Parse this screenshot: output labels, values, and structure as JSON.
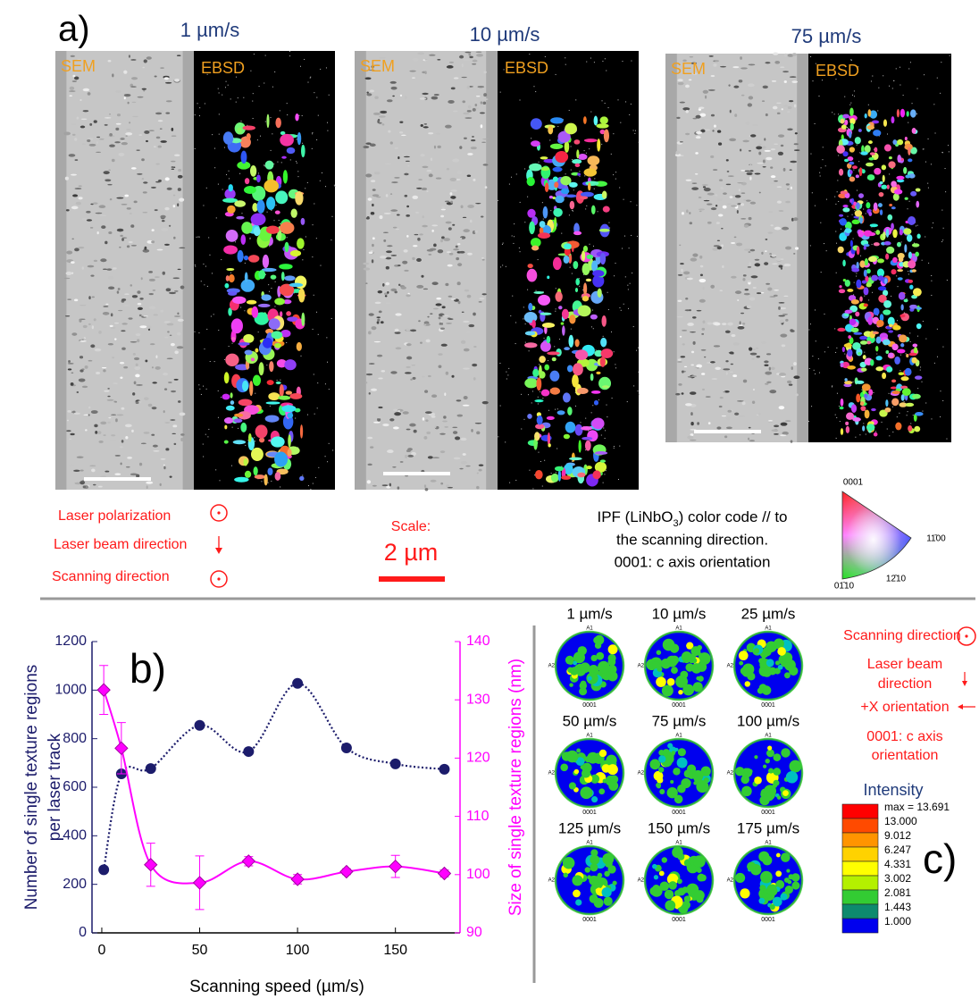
{
  "panel_a": {
    "label": "a)",
    "speeds": [
      "1 µm/s",
      "10 µm/s",
      "75 µm/s"
    ],
    "image_labels": [
      "SEM",
      "EBSD"
    ],
    "legend": [
      "Laser polarization",
      "Laser beam direction",
      "Scanning direction"
    ],
    "scale": {
      "title": "Scale:",
      "value": "2 µm"
    },
    "ipf": {
      "line1": [
        "IPF (LiNbO",
        "3",
        ") color code // to"
      ],
      "line2": "the scanning direction.",
      "line3": "0001: c axis orientation"
    },
    "ipf_triangle": {
      "top": "0001",
      "right": "11̄00",
      "bottom_left": "01̄10",
      "bottom_right": "12̄10"
    }
  },
  "chart_data": {
    "type": "scatter",
    "label": "b)",
    "xlabel": "Scanning speed (µm/s)",
    "ylabel": [
      "Number of single texture regions",
      "per laser track"
    ],
    "y2label": "Size of single texture regions (nm)",
    "x": [
      1,
      10,
      25,
      50,
      75,
      100,
      125,
      150,
      175
    ],
    "series": [
      {
        "color": "#1c1c6b",
        "marker": "circle",
        "line": "dotted",
        "values": [
          260,
          655,
          677,
          855,
          747,
          1028,
          762,
          696,
          674
        ]
      },
      {
        "color": "#ff00ff",
        "marker": "diamond",
        "line": "solid",
        "axis": "y2",
        "values": [
          131.7,
          121.7,
          101.7,
          98.6,
          102.3,
          99.2,
          100.5,
          101.4,
          100.2
        ],
        "errors": [
          4.2,
          4.4,
          3.7,
          4.6,
          0.8,
          0.8,
          0.5,
          1.9,
          0.6
        ]
      }
    ],
    "xlim": [
      -5,
      183
    ],
    "xticks": [
      0,
      50,
      100,
      150
    ],
    "ylim": [
      0,
      1200
    ],
    "yticks": [
      0,
      200,
      400,
      600,
      800,
      1000,
      1200
    ],
    "y2lim": [
      90,
      140
    ],
    "y2ticks": [
      90,
      100,
      110,
      120,
      130,
      140
    ]
  },
  "panel_c": {
    "label": "c)",
    "pole_figures": [
      "1 µm/s",
      "10 µm/s",
      "25 µm/s",
      "50 µm/s",
      "75 µm/s",
      "100 µm/s",
      "125 µm/s",
      "150 µm/s",
      "175 µm/s"
    ],
    "pole_axes": {
      "top": "A1",
      "left": "A2",
      "bottom": "0001"
    },
    "legend": {
      "scanning": "Scanning direction",
      "laser_beam": [
        "Laser beam",
        "direction"
      ],
      "x_orientation": "+X orientation",
      "c_axis": [
        "0001: c axis",
        "orientation"
      ]
    },
    "colorbar": {
      "title": "Intensity",
      "labels": [
        "max = 13.691",
        "13.000",
        "9.012",
        "6.247",
        "4.331",
        "3.002",
        "2.081",
        "1.443",
        "1.000"
      ],
      "colors": [
        "#ff0000",
        "#ff4a00",
        "#ff9400",
        "#ffd200",
        "#ffff00",
        "#b4f000",
        "#33cc33",
        "#0d8a6e",
        "#0000ee"
      ]
    }
  }
}
